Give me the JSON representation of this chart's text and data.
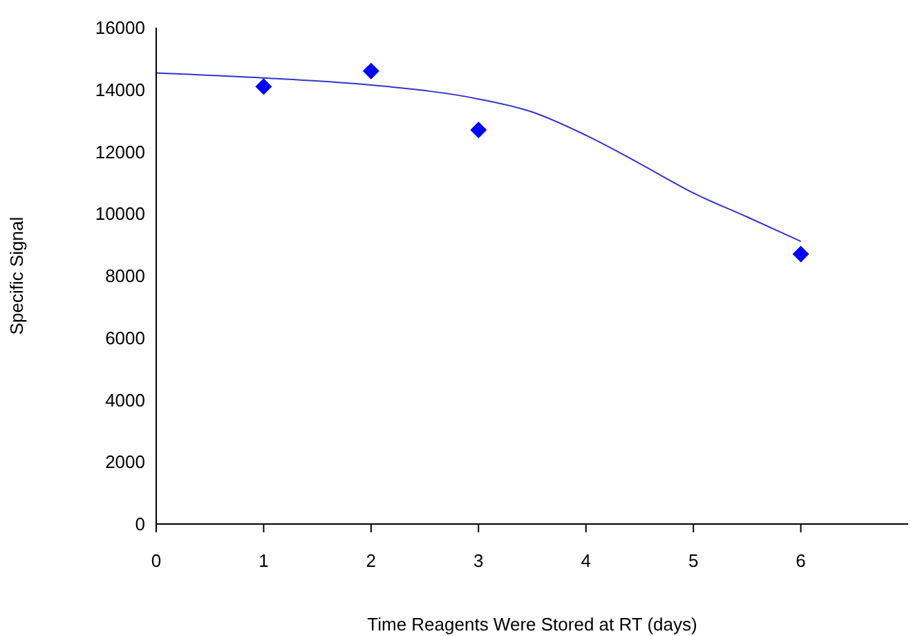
{
  "chart_data": {
    "type": "scatter",
    "xlabel": "Time Reagents Were Stored at RT (days)",
    "ylabel": "Specific Signal",
    "series": [
      {
        "color": "#0000ff",
        "marker": "diamond",
        "x": [
          1,
          2,
          3,
          6
        ],
        "values": [
          14100,
          14600,
          12700,
          8700
        ]
      },
      {
        "type": "line",
        "color": "#3333cc",
        "marker": "none",
        "x": [
          0,
          1,
          2,
          3,
          3.5,
          4,
          4.5,
          5,
          5.5,
          6
        ],
        "values": [
          14540,
          14380,
          14150,
          13700,
          13280,
          12530,
          11620,
          10670,
          9900,
          9110
        ]
      }
    ],
    "xlim": [
      0,
      7
    ],
    "xticks": [
      0,
      1,
      2,
      3,
      4,
      5,
      6
    ],
    "ylim": [
      0,
      16000
    ],
    "yticks": [
      0,
      2000,
      4000,
      6000,
      8000,
      10000,
      12000,
      14000,
      16000
    ],
    "grid": false,
    "legend": false
  }
}
